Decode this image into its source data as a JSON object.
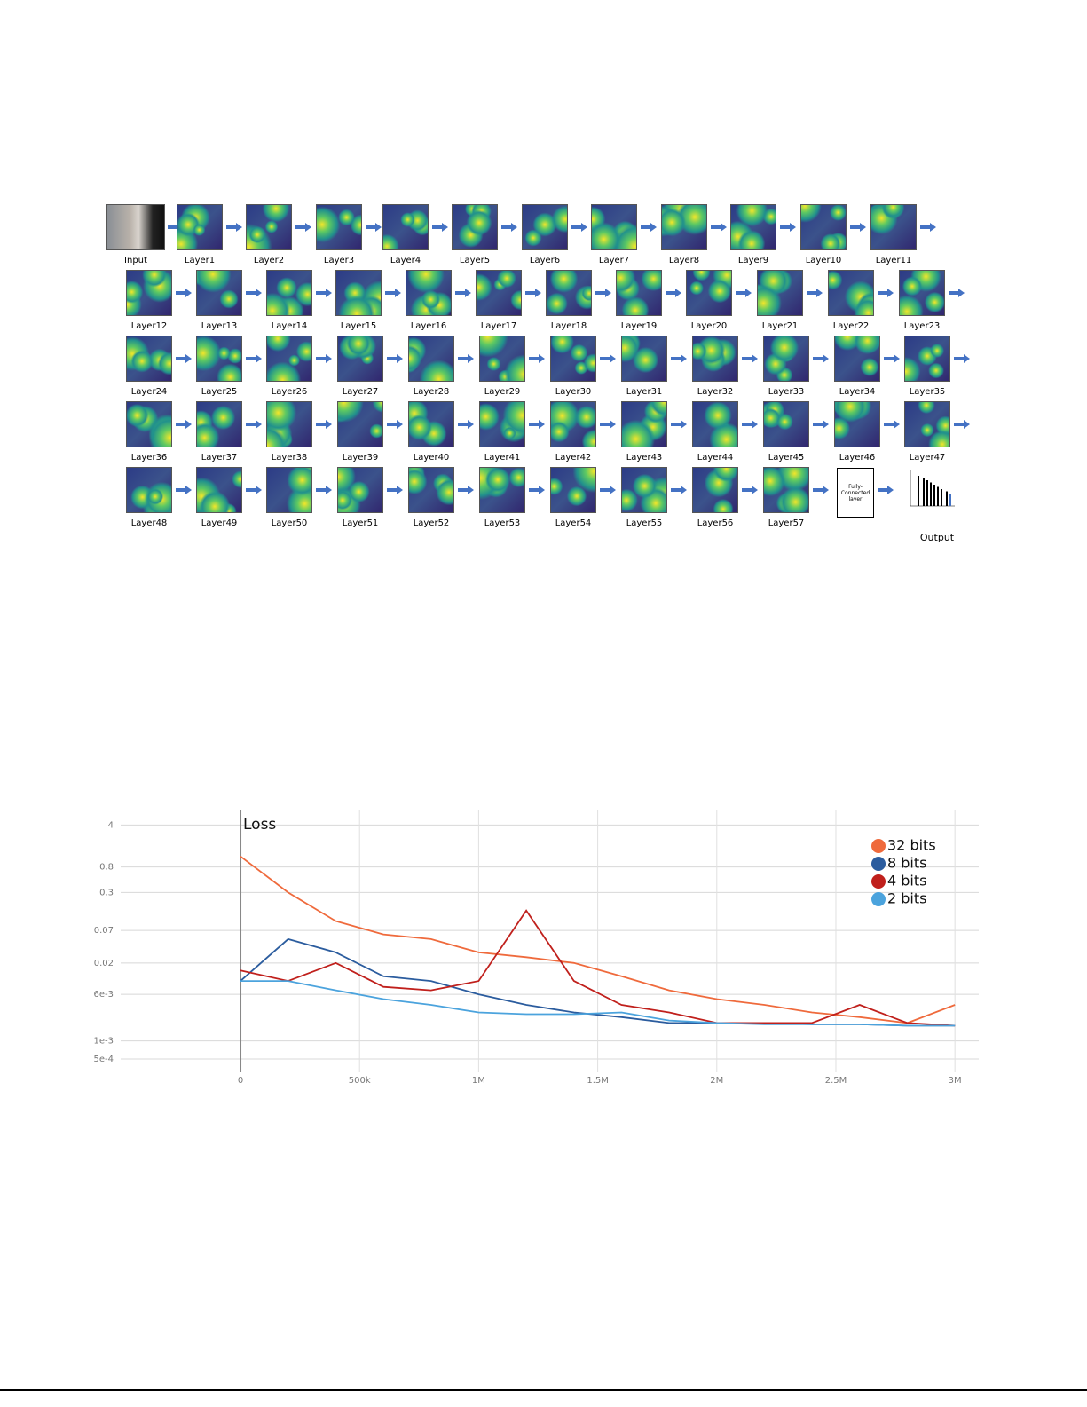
{
  "figure": {
    "input": "Input",
    "layers": [
      "Layer1",
      "Layer2",
      "Layer3",
      "Layer4",
      "Layer5",
      "Layer6",
      "Layer7",
      "Layer8",
      "Layer9",
      "Layer10",
      "Layer11",
      "Layer12",
      "Layer13",
      "Layer14",
      "Layer15",
      "Layer16",
      "Layer17",
      "Layer18",
      "Layer19",
      "Layer20",
      "Layer21",
      "Layer22",
      "Layer23",
      "Layer24",
      "Layer25",
      "Layer26",
      "Layer27",
      "Layer28",
      "Layer29",
      "Layer30",
      "Layer31",
      "Layer32",
      "Layer33",
      "Layer34",
      "Layer35",
      "Layer36",
      "Layer37",
      "Layer38",
      "Layer39",
      "Layer40",
      "Layer41",
      "Layer42",
      "Layer43",
      "Layer44",
      "Layer45",
      "Layer46",
      "Layer47",
      "Layer48",
      "Layer49",
      "Layer50",
      "Layer51",
      "Layer52",
      "Layer53",
      "Layer54",
      "Layer55",
      "Layer56",
      "Layer57"
    ],
    "fc_layer": "Fully-Connected layer",
    "output": "Output"
  },
  "chart_data": {
    "type": "line",
    "title": "Loss",
    "log_y": true,
    "grid": true,
    "x": [
      0,
      200000,
      400000,
      600000,
      800000,
      1000000,
      1200000,
      1400000,
      1600000,
      1800000,
      2000000,
      2200000,
      2400000,
      2600000,
      2800000,
      3000000
    ],
    "series": [
      {
        "name": "32 bits",
        "color": "#ef6a3c",
        "values": [
          1.2,
          0.3,
          0.1,
          0.06,
          0.05,
          0.03,
          0.025,
          0.02,
          0.012,
          0.007,
          0.005,
          0.004,
          0.003,
          0.0025,
          0.002,
          0.004
        ]
      },
      {
        "name": "8 bits",
        "color": "#2b5c9e",
        "values": [
          0.01,
          0.05,
          0.03,
          0.012,
          0.01,
          0.006,
          0.004,
          0.003,
          0.0025,
          0.002,
          0.002,
          0.002,
          0.0019,
          0.0019,
          0.0018,
          0.0018
        ]
      },
      {
        "name": "4 bits",
        "color": "#c0201c",
        "values": [
          0.015,
          0.01,
          0.02,
          0.008,
          0.007,
          0.01,
          0.15,
          0.01,
          0.004,
          0.003,
          0.002,
          0.002,
          0.002,
          0.004,
          0.002,
          0.0018
        ]
      },
      {
        "name": "2 bits",
        "color": "#4ba3dd",
        "values": [
          0.01,
          0.01,
          0.007,
          0.005,
          0.004,
          0.003,
          0.0028,
          0.0028,
          0.003,
          0.0022,
          0.002,
          0.0019,
          0.0019,
          0.0019,
          0.0018,
          0.0018
        ]
      }
    ],
    "xlim": [
      -600000,
      3100000
    ],
    "xticks": [
      0,
      {
        "value": 500000,
        "label": "500k"
      },
      {
        "value": 1000000,
        "label": "1M"
      },
      {
        "value": 1500000,
        "label": "1.5M"
      },
      {
        "value": 2000000,
        "label": "2M"
      },
      {
        "value": 2500000,
        "label": "2.5M"
      },
      {
        "value": 3000000,
        "label": "3M"
      }
    ],
    "ylim": [
      0.0003,
      7
    ],
    "yticks": [
      4,
      0.8,
      0.3,
      0.07,
      0.02,
      {
        "value": 0.006,
        "label": "6e-3"
      },
      {
        "value": 0.001,
        "label": "1e-3"
      },
      {
        "value": 0.0005,
        "label": "5e-4"
      }
    ],
    "legend_position": "upper right"
  }
}
